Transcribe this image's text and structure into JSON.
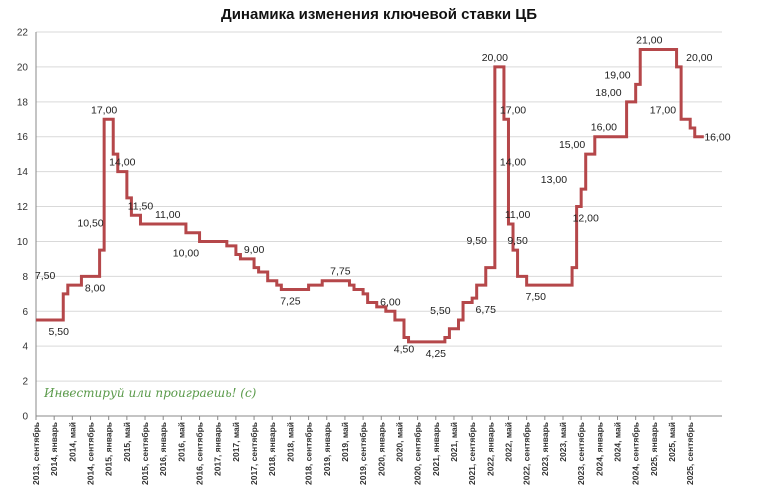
{
  "chart_data": {
    "type": "line",
    "title": "Динамика изменения ключевой ставки ЦБ",
    "ylim": [
      0,
      22
    ],
    "y_ticks": [
      0,
      2,
      4,
      6,
      8,
      10,
      12,
      14,
      16,
      18,
      20,
      22
    ],
    "x_ticks": [
      "2013, сентябрь",
      "2014, январь",
      "2014, май",
      "2014, сентябрь",
      "2015, январь",
      "2015, май",
      "2015, сентябрь",
      "2016, январь",
      "2016, май",
      "2016, сентябрь",
      "2017, январь",
      "2017, май",
      "2017, сентябрь",
      "2018, январь",
      "2018, май",
      "2018, сентябрь",
      "2019, январь",
      "2019, май",
      "2019, сентябрь",
      "2020, январь",
      "2020, май",
      "2020, сентябрь",
      "2021, январь",
      "2021, май",
      "2021, сентябрь",
      "2022, январь",
      "2022, май",
      "2022, сентябрь",
      "2023, январь",
      "2023, май",
      "2023, сентябрь",
      "2024, январь",
      "2024, май",
      "2024, сентябрь",
      "2025, январь",
      "2025, май",
      "2025, сентябрь"
    ],
    "grid": "horizontal",
    "series": [
      {
        "color": "#b5474a",
        "points": [
          {
            "x": "2013-09",
            "y": 5.5
          },
          {
            "x": "2014-03",
            "y": 7.0
          },
          {
            "x": "2014-04",
            "y": 7.5
          },
          {
            "x": "2014-07",
            "y": 8.0
          },
          {
            "x": "2014-11",
            "y": 9.5
          },
          {
            "x": "2014-12",
            "y": 10.5
          },
          {
            "x": "2014-12",
            "y": 17.0
          },
          {
            "x": "2015-02",
            "y": 15.0
          },
          {
            "x": "2015-03",
            "y": 14.0
          },
          {
            "x": "2015-05",
            "y": 12.5
          },
          {
            "x": "2015-06",
            "y": 11.5
          },
          {
            "x": "2015-08",
            "y": 11.0
          },
          {
            "x": "2016-06",
            "y": 10.5
          },
          {
            "x": "2016-09",
            "y": 10.0
          },
          {
            "x": "2017-03",
            "y": 9.75
          },
          {
            "x": "2017-05",
            "y": 9.25
          },
          {
            "x": "2017-06",
            "y": 9.0
          },
          {
            "x": "2017-09",
            "y": 8.5
          },
          {
            "x": "2017-10",
            "y": 8.25
          },
          {
            "x": "2017-12",
            "y": 7.75
          },
          {
            "x": "2018-02",
            "y": 7.5
          },
          {
            "x": "2018-03",
            "y": 7.25
          },
          {
            "x": "2018-09",
            "y": 7.5
          },
          {
            "x": "2018-12",
            "y": 7.75
          },
          {
            "x": "2019-06",
            "y": 7.5
          },
          {
            "x": "2019-07",
            "y": 7.25
          },
          {
            "x": "2019-09",
            "y": 7.0
          },
          {
            "x": "2019-10",
            "y": 6.5
          },
          {
            "x": "2019-12",
            "y": 6.25
          },
          {
            "x": "2020-02",
            "y": 6.0
          },
          {
            "x": "2020-04",
            "y": 5.5
          },
          {
            "x": "2020-06",
            "y": 4.5
          },
          {
            "x": "2020-07",
            "y": 4.25
          },
          {
            "x": "2021-03",
            "y": 4.5
          },
          {
            "x": "2021-04",
            "y": 5.0
          },
          {
            "x": "2021-06",
            "y": 5.5
          },
          {
            "x": "2021-07",
            "y": 6.5
          },
          {
            "x": "2021-09",
            "y": 6.75
          },
          {
            "x": "2021-10",
            "y": 7.5
          },
          {
            "x": "2021-12",
            "y": 8.5
          },
          {
            "x": "2022-02",
            "y": 9.5
          },
          {
            "x": "2022-02",
            "y": 20.0
          },
          {
            "x": "2022-04",
            "y": 17.0
          },
          {
            "x": "2022-05",
            "y": 14.0
          },
          {
            "x": "2022-05",
            "y": 11.0
          },
          {
            "x": "2022-06",
            "y": 9.5
          },
          {
            "x": "2022-07",
            "y": 8.0
          },
          {
            "x": "2022-09",
            "y": 7.5
          },
          {
            "x": "2023-07",
            "y": 8.5
          },
          {
            "x": "2023-08",
            "y": 12.0
          },
          {
            "x": "2023-09",
            "y": 13.0
          },
          {
            "x": "2023-10",
            "y": 15.0
          },
          {
            "x": "2023-12",
            "y": 16.0
          },
          {
            "x": "2024-07",
            "y": 18.0
          },
          {
            "x": "2024-09",
            "y": 19.0
          },
          {
            "x": "2024-10",
            "y": 21.0
          },
          {
            "x": "2025-06",
            "y": 20.0
          },
          {
            "x": "2025-07",
            "y": 18.0
          },
          {
            "x": "2025-07",
            "y": 17.0
          },
          {
            "x": "2025-09",
            "y": 16.5
          },
          {
            "x": "2025-10",
            "y": 16.0
          },
          {
            "x": "2025-12",
            "y": 16.0
          }
        ]
      }
    ],
    "data_labels": [
      {
        "text": "7,50",
        "x": "2013-11",
        "y": 7.5,
        "pos": "above"
      },
      {
        "text": "5,50",
        "x": "2014-02",
        "y": 5.5,
        "pos": "below"
      },
      {
        "text": "10,50",
        "x": "2014-09",
        "y": 10.5,
        "pos": "above"
      },
      {
        "text": "8,00",
        "x": "2014-10",
        "y": 8.0,
        "pos": "below"
      },
      {
        "text": "17,00",
        "x": "2014-12",
        "y": 17.0,
        "pos": "above"
      },
      {
        "text": "14,00",
        "x": "2015-04",
        "y": 14.0,
        "pos": "above"
      },
      {
        "text": "11,50",
        "x": "2015-08",
        "y": 11.5,
        "pos": "above"
      },
      {
        "text": "11,00",
        "x": "2016-02",
        "y": 11.0,
        "pos": "above"
      },
      {
        "text": "10,00",
        "x": "2016-06",
        "y": 10.0,
        "pos": "below"
      },
      {
        "text": "9,00",
        "x": "2017-09",
        "y": 9.0,
        "pos": "above"
      },
      {
        "text": "7,25",
        "x": "2018-05",
        "y": 7.25,
        "pos": "below"
      },
      {
        "text": "7,75",
        "x": "2019-04",
        "y": 7.75,
        "pos": "above"
      },
      {
        "text": "6,00",
        "x": "2020-03",
        "y": 6.0,
        "pos": "above"
      },
      {
        "text": "4,50",
        "x": "2020-06",
        "y": 4.5,
        "pos": "below"
      },
      {
        "text": "4,25",
        "x": "2021-01",
        "y": 4.25,
        "pos": "below"
      },
      {
        "text": "5,50",
        "x": "2021-02",
        "y": 5.5,
        "pos": "above"
      },
      {
        "text": "9,50",
        "x": "2021-10",
        "y": 9.5,
        "pos": "above"
      },
      {
        "text": "6,75",
        "x": "2021-12",
        "y": 6.75,
        "pos": "below"
      },
      {
        "text": "20,00",
        "x": "2022-02",
        "y": 20.0,
        "pos": "above"
      },
      {
        "text": "17,00",
        "x": "2022-06",
        "y": 17.0,
        "pos": "above"
      },
      {
        "text": "14,00",
        "x": "2022-06",
        "y": 14.0,
        "pos": "above"
      },
      {
        "text": "11,00",
        "x": "2022-07",
        "y": 11.0,
        "pos": "above"
      },
      {
        "text": "9,50",
        "x": "2022-07",
        "y": 9.5,
        "pos": "above"
      },
      {
        "text": "7,50",
        "x": "2022-11",
        "y": 7.5,
        "pos": "below"
      },
      {
        "text": "13,00",
        "x": "2023-03",
        "y": 13.0,
        "pos": "above"
      },
      {
        "text": "12,00",
        "x": "2023-10",
        "y": 12.0,
        "pos": "below"
      },
      {
        "text": "15,00",
        "x": "2023-07",
        "y": 15.0,
        "pos": "above"
      },
      {
        "text": "16,00",
        "x": "2024-02",
        "y": 16.0,
        "pos": "above"
      },
      {
        "text": "18,00",
        "x": "2024-03",
        "y": 18.0,
        "pos": "above"
      },
      {
        "text": "19,00",
        "x": "2024-05",
        "y": 19.0,
        "pos": "above"
      },
      {
        "text": "21,00",
        "x": "2024-12",
        "y": 21.0,
        "pos": "above"
      },
      {
        "text": "20,00",
        "x": "2025-11",
        "y": 20.0,
        "pos": "above"
      },
      {
        "text": "17,00",
        "x": "2025-03",
        "y": 17.0,
        "pos": "above"
      },
      {
        "text": "16,00",
        "x": "2026-03",
        "y": 16.0,
        "pos": "center"
      }
    ],
    "watermark": "Инвестируй или проиграешь! (с)"
  }
}
